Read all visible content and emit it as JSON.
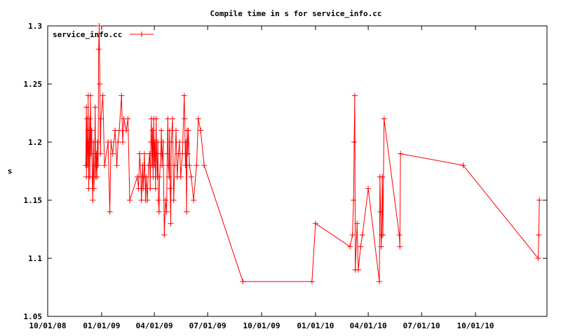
{
  "chart_data": {
    "type": "line",
    "title": "Compile time in s for service_info.cc",
    "xlabel": "",
    "ylabel": "s",
    "x_range": [
      "2008-10-01",
      "2011-01-31"
    ],
    "ylim": [
      1.05,
      1.3
    ],
    "y_ticks": [
      "1.05",
      "1.1",
      "1.15",
      "1.2",
      "1.25",
      "1.3"
    ],
    "x_ticks": [
      {
        "label": "10/01/08",
        "date": "2008-10-01"
      },
      {
        "label": "01/01/09",
        "date": "2009-01-01"
      },
      {
        "label": "04/01/09",
        "date": "2009-04-01"
      },
      {
        "label": "07/01/09",
        "date": "2009-07-01"
      },
      {
        "label": "10/01/09",
        "date": "2009-10-01"
      },
      {
        "label": "01/01/10",
        "date": "2010-01-01"
      },
      {
        "label": "04/01/10",
        "date": "2010-04-01"
      },
      {
        "label": "07/01/10",
        "date": "2010-07-01"
      },
      {
        "label": "10/01/10",
        "date": "2010-10-01"
      }
    ],
    "legend_position": "top-left",
    "grid": false,
    "series": [
      {
        "name": "service_info.cc",
        "color": "#ff0000",
        "marker": "plus",
        "points": [
          [
            "2008-12-05",
            1.18
          ],
          [
            "2008-12-06",
            1.23
          ],
          [
            "2008-12-06",
            1.17
          ],
          [
            "2008-12-07",
            1.22
          ],
          [
            "2008-12-08",
            1.18
          ],
          [
            "2008-12-09",
            1.21
          ],
          [
            "2008-12-09",
            1.24
          ],
          [
            "2008-12-10",
            1.16
          ],
          [
            "2008-12-11",
            1.2
          ],
          [
            "2008-12-12",
            1.22
          ],
          [
            "2008-12-12",
            1.17
          ],
          [
            "2008-12-13",
            1.24
          ],
          [
            "2008-12-14",
            1.19
          ],
          [
            "2008-12-15",
            1.21
          ],
          [
            "2008-12-16",
            1.17
          ],
          [
            "2008-12-17",
            1.15
          ],
          [
            "2008-12-18",
            1.2
          ],
          [
            "2008-12-19",
            1.16
          ],
          [
            "2008-12-20",
            1.18
          ],
          [
            "2008-12-21",
            1.23
          ],
          [
            "2008-12-22",
            1.17
          ],
          [
            "2008-12-23",
            1.19
          ],
          [
            "2008-12-24",
            1.17
          ],
          [
            "2008-12-25",
            1.2
          ],
          [
            "2008-12-26",
            1.18
          ],
          [
            "2008-12-27",
            1.28
          ],
          [
            "2008-12-28",
            1.3
          ],
          [
            "2008-12-29",
            1.25
          ],
          [
            "2008-12-30",
            1.19
          ],
          [
            "2008-12-31",
            1.22
          ],
          [
            "2009-01-03",
            1.24
          ],
          [
            "2009-01-06",
            1.18
          ],
          [
            "2009-01-12",
            1.2
          ],
          [
            "2009-01-15",
            1.14
          ],
          [
            "2009-01-17",
            1.2
          ],
          [
            "2009-01-20",
            1.19
          ],
          [
            "2009-01-24",
            1.21
          ],
          [
            "2009-01-27",
            1.18
          ],
          [
            "2009-01-29",
            1.2
          ],
          [
            "2009-01-31",
            1.21
          ],
          [
            "2009-02-04",
            1.24
          ],
          [
            "2009-02-06",
            1.2
          ],
          [
            "2009-02-08",
            1.22
          ],
          [
            "2009-02-12",
            1.21
          ],
          [
            "2009-02-15",
            1.22
          ],
          [
            "2009-02-18",
            1.15
          ],
          [
            "2009-03-03",
            1.17
          ],
          [
            "2009-03-05",
            1.16
          ],
          [
            "2009-03-07",
            1.19
          ],
          [
            "2009-03-09",
            1.17
          ],
          [
            "2009-03-10",
            1.15
          ],
          [
            "2009-03-12",
            1.18
          ],
          [
            "2009-03-13",
            1.16
          ],
          [
            "2009-03-14",
            1.17
          ],
          [
            "2009-03-15",
            1.19
          ],
          [
            "2009-03-17",
            1.15
          ],
          [
            "2009-03-18",
            1.17
          ],
          [
            "2009-03-20",
            1.15
          ],
          [
            "2009-03-22",
            1.18
          ],
          [
            "2009-03-24",
            1.19
          ],
          [
            "2009-03-25",
            1.16
          ],
          [
            "2009-03-26",
            1.2
          ],
          [
            "2009-03-27",
            1.22
          ],
          [
            "2009-03-28",
            1.18
          ],
          [
            "2009-03-29",
            1.21
          ],
          [
            "2009-03-30",
            1.17
          ],
          [
            "2009-03-31",
            1.22
          ],
          [
            "2009-04-01",
            1.18
          ],
          [
            "2009-04-02",
            1.2
          ],
          [
            "2009-04-03",
            1.16
          ],
          [
            "2009-04-04",
            1.22
          ],
          [
            "2009-04-05",
            1.19
          ],
          [
            "2009-04-06",
            1.17
          ],
          [
            "2009-04-07",
            1.2
          ],
          [
            "2009-04-08",
            1.15
          ],
          [
            "2009-04-09",
            1.14
          ],
          [
            "2009-04-10",
            1.17
          ],
          [
            "2009-04-12",
            1.19
          ],
          [
            "2009-04-13",
            1.21
          ],
          [
            "2009-04-14",
            1.18
          ],
          [
            "2009-04-16",
            1.2
          ],
          [
            "2009-04-18",
            1.12
          ],
          [
            "2009-04-20",
            1.15
          ],
          [
            "2009-04-22",
            1.14
          ],
          [
            "2009-04-23",
            1.19
          ],
          [
            "2009-04-24",
            1.22
          ],
          [
            "2009-04-25",
            1.18
          ],
          [
            "2009-04-26",
            1.17
          ],
          [
            "2009-04-27",
            1.21
          ],
          [
            "2009-04-28",
            1.16
          ],
          [
            "2009-04-29",
            1.13
          ],
          [
            "2009-04-30",
            1.2
          ],
          [
            "2009-05-02",
            1.22
          ],
          [
            "2009-05-04",
            1.15
          ],
          [
            "2009-05-06",
            1.18
          ],
          [
            "2009-05-08",
            1.21
          ],
          [
            "2009-05-10",
            1.17
          ],
          [
            "2009-05-12",
            1.19
          ],
          [
            "2009-05-14",
            1.2
          ],
          [
            "2009-05-16",
            1.17
          ],
          [
            "2009-05-19",
            1.19
          ],
          [
            "2009-05-22",
            1.24
          ],
          [
            "2009-05-23",
            1.22
          ],
          [
            "2009-05-24",
            1.18
          ],
          [
            "2009-05-25",
            1.2
          ],
          [
            "2009-05-26",
            1.14
          ],
          [
            "2009-05-27",
            1.21
          ],
          [
            "2009-05-28",
            1.19
          ],
          [
            "2009-05-29",
            1.21
          ],
          [
            "2009-05-31",
            1.18
          ],
          [
            "2009-06-03",
            1.17
          ],
          [
            "2009-06-07",
            1.15
          ],
          [
            "2009-06-12",
            1.18
          ],
          [
            "2009-06-15",
            1.22
          ],
          [
            "2009-06-19",
            1.21
          ],
          [
            "2009-06-25",
            1.18
          ],
          [
            "2009-08-30",
            1.08
          ],
          [
            "2009-12-26",
            1.08
          ],
          [
            "2010-01-01",
            1.13
          ],
          [
            "2010-03-01",
            1.11
          ],
          [
            "2010-03-05",
            1.12
          ],
          [
            "2010-03-07",
            1.15
          ],
          [
            "2010-03-08",
            1.2
          ],
          [
            "2010-03-09",
            1.24
          ],
          [
            "2010-03-10",
            1.09
          ],
          [
            "2010-03-13",
            1.13
          ],
          [
            "2010-03-15",
            1.09
          ],
          [
            "2010-03-19",
            1.11
          ],
          [
            "2010-03-22",
            1.12
          ],
          [
            "2010-04-01",
            1.16
          ],
          [
            "2010-04-20",
            1.08
          ],
          [
            "2010-04-21",
            1.17
          ],
          [
            "2010-04-22",
            1.14
          ],
          [
            "2010-04-23",
            1.11
          ],
          [
            "2010-04-24",
            1.12
          ],
          [
            "2010-04-25",
            1.17
          ],
          [
            "2010-04-26",
            1.12
          ],
          [
            "2010-04-28",
            1.22
          ],
          [
            "2010-05-24",
            1.12
          ],
          [
            "2010-05-25",
            1.11
          ],
          [
            "2010-05-26",
            1.19
          ],
          [
            "2010-09-10",
            1.18
          ],
          [
            "2011-01-16",
            1.1
          ],
          [
            "2011-01-17",
            1.12
          ],
          [
            "2011-01-18",
            1.15
          ]
        ]
      }
    ]
  }
}
